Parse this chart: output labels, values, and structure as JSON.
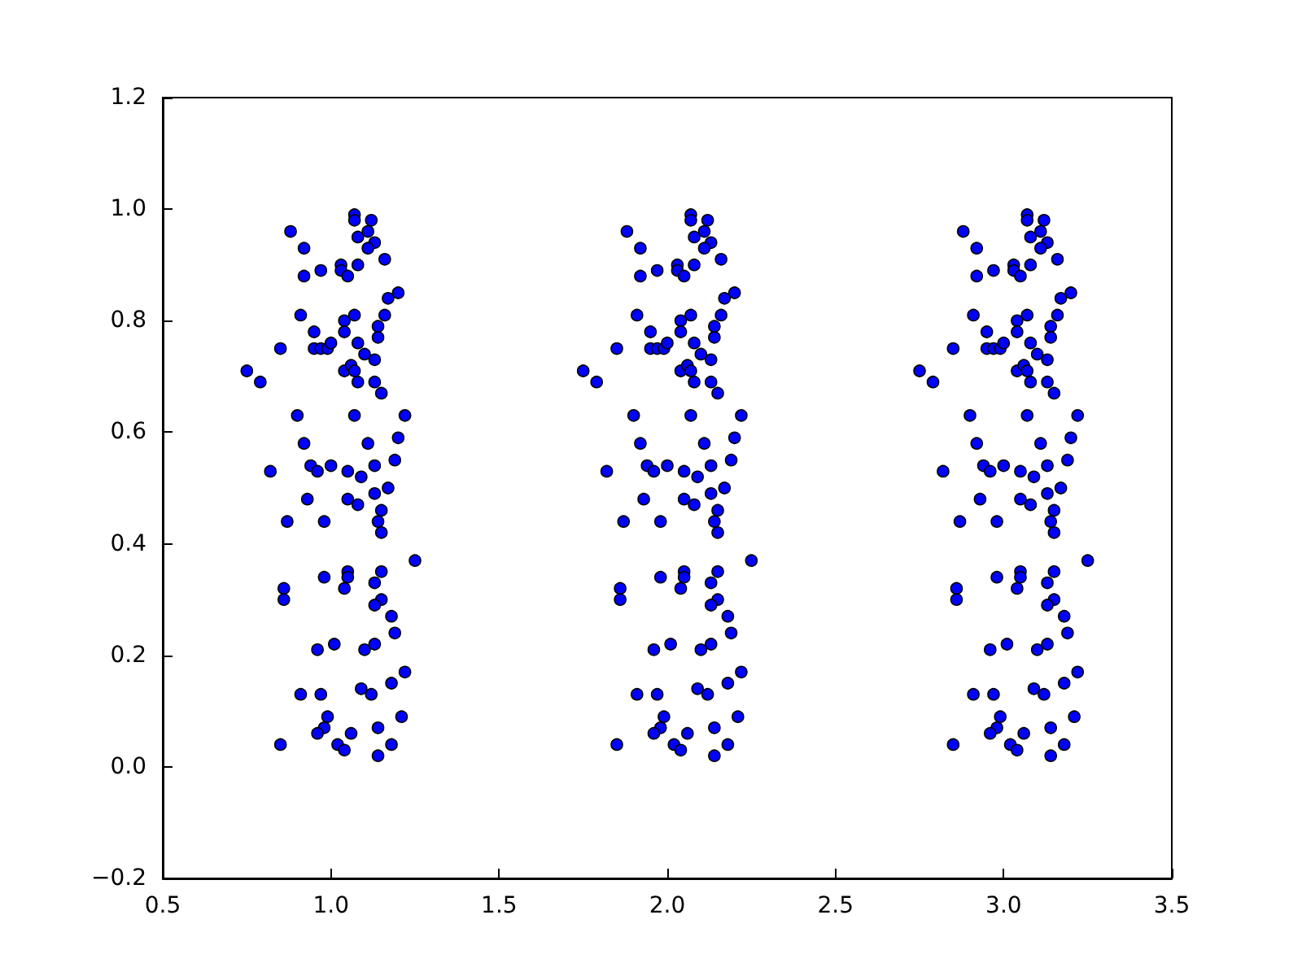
{
  "chart_data": {
    "type": "scatter",
    "marker": "circle",
    "grid": false,
    "xlim": [
      0.5,
      3.5
    ],
    "xticks": [
      {
        "value": 0.5,
        "label": "0.5"
      },
      {
        "value": 1,
        "label": "1.0"
      },
      {
        "value": 1.5,
        "label": "1.5"
      },
      {
        "value": 2,
        "label": "2.0"
      },
      {
        "value": 2.5,
        "label": "2.5"
      },
      {
        "value": 3,
        "label": "3.0"
      },
      {
        "value": 3.5,
        "label": "3.5"
      }
    ],
    "ylim": [
      -0.2,
      1.2
    ],
    "yticks": [
      {
        "value": -0.2,
        "label": "−0.2"
      },
      {
        "value": 0,
        "label": "0.0"
      },
      {
        "value": 0.2,
        "label": "0.2"
      },
      {
        "value": 0.4,
        "label": "0.4"
      },
      {
        "value": 0.6,
        "label": "0.6"
      },
      {
        "value": 0.8,
        "label": "0.8"
      },
      {
        "value": 1,
        "label": "1.0"
      },
      {
        "value": 1.2,
        "label": "1.2"
      }
    ],
    "series": [
      {
        "color": "#0000ff",
        "x": [
          1.07,
          1.07,
          1.12,
          0.88,
          1.11,
          1.08,
          1.13,
          1.11,
          0.92,
          1.16,
          1.03,
          1.08,
          0.97,
          1.03,
          1.05,
          0.92,
          1.2,
          1.17,
          1.16,
          0.91,
          1.07,
          1.04,
          1.14,
          1.04,
          0.95,
          1.14,
          0.85,
          0.95,
          0.97,
          0.99,
          1.0,
          1.08,
          1.1,
          1.13,
          0.75,
          0.79,
          1.04,
          1.06,
          1.07,
          1.08,
          1.13,
          1.15,
          0.9,
          1.07,
          1.22,
          1.2,
          0.92,
          1.11,
          1.19,
          0.82,
          0.94,
          0.96,
          1.0,
          1.05,
          1.09,
          1.13,
          1.17,
          0.93,
          1.05,
          1.08,
          1.13,
          1.15,
          0.87,
          0.98,
          1.14,
          1.15,
          1.25,
          0.98,
          1.05,
          1.05,
          1.15,
          0.86,
          0.86,
          1.04,
          1.13,
          1.15,
          1.13,
          1.18,
          1.19,
          0.96,
          1.01,
          1.1,
          1.13,
          1.22,
          1.18,
          0.91,
          0.97,
          1.09,
          1.12,
          0.99,
          0.98,
          0.96,
          1.06,
          1.14,
          1.21,
          0.85,
          1.02,
          1.04,
          1.18,
          1.14
        ],
        "values": [
          0.99,
          0.98,
          0.98,
          0.96,
          0.96,
          0.95,
          0.94,
          0.93,
          0.93,
          0.91,
          0.9,
          0.9,
          0.89,
          0.89,
          0.88,
          0.88,
          0.85,
          0.84,
          0.81,
          0.81,
          0.81,
          0.8,
          0.79,
          0.78,
          0.78,
          0.77,
          0.75,
          0.75,
          0.75,
          0.75,
          0.76,
          0.76,
          0.74,
          0.73,
          0.71,
          0.69,
          0.71,
          0.72,
          0.71,
          0.69,
          0.69,
          0.67,
          0.63,
          0.63,
          0.63,
          0.59,
          0.58,
          0.58,
          0.55,
          0.53,
          0.54,
          0.53,
          0.54,
          0.53,
          0.52,
          0.54,
          0.5,
          0.48,
          0.48,
          0.47,
          0.49,
          0.46,
          0.44,
          0.44,
          0.44,
          0.42,
          0.37,
          0.34,
          0.35,
          0.34,
          0.35,
          0.32,
          0.3,
          0.32,
          0.33,
          0.3,
          0.29,
          0.27,
          0.24,
          0.21,
          0.22,
          0.21,
          0.22,
          0.17,
          0.15,
          0.13,
          0.13,
          0.14,
          0.13,
          0.09,
          0.07,
          0.06,
          0.06,
          0.07,
          0.09,
          0.04,
          0.04,
          0.03,
          0.04,
          0.02
        ]
      },
      {
        "color": "#0000ff",
        "x": [
          2.07,
          2.07,
          2.12,
          1.88,
          2.11,
          2.08,
          2.13,
          2.11,
          1.92,
          2.16,
          2.03,
          2.08,
          1.97,
          2.03,
          2.05,
          1.92,
          2.2,
          2.17,
          2.16,
          1.91,
          2.07,
          2.04,
          2.14,
          2.04,
          1.95,
          2.14,
          1.85,
          1.95,
          1.97,
          1.99,
          2.0,
          2.08,
          2.1,
          2.13,
          1.75,
          1.79,
          2.04,
          2.06,
          2.07,
          2.08,
          2.13,
          2.15,
          1.9,
          2.07,
          2.22,
          2.2,
          1.92,
          2.11,
          2.19,
          1.82,
          1.94,
          1.96,
          2.0,
          2.05,
          2.09,
          2.13,
          2.17,
          1.93,
          2.05,
          2.08,
          2.13,
          2.15,
          1.87,
          1.98,
          2.14,
          2.15,
          2.25,
          1.98,
          2.05,
          2.05,
          2.15,
          1.86,
          1.86,
          2.04,
          2.13,
          2.15,
          2.13,
          2.18,
          2.19,
          1.96,
          2.01,
          2.1,
          2.13,
          2.22,
          2.18,
          1.91,
          1.97,
          2.09,
          2.12,
          1.99,
          1.98,
          1.96,
          2.06,
          2.14,
          2.21,
          1.85,
          2.02,
          2.04,
          2.18,
          2.14
        ],
        "values": [
          0.99,
          0.98,
          0.98,
          0.96,
          0.96,
          0.95,
          0.94,
          0.93,
          0.93,
          0.91,
          0.9,
          0.9,
          0.89,
          0.89,
          0.88,
          0.88,
          0.85,
          0.84,
          0.81,
          0.81,
          0.81,
          0.8,
          0.79,
          0.78,
          0.78,
          0.77,
          0.75,
          0.75,
          0.75,
          0.75,
          0.76,
          0.76,
          0.74,
          0.73,
          0.71,
          0.69,
          0.71,
          0.72,
          0.71,
          0.69,
          0.69,
          0.67,
          0.63,
          0.63,
          0.63,
          0.59,
          0.58,
          0.58,
          0.55,
          0.53,
          0.54,
          0.53,
          0.54,
          0.53,
          0.52,
          0.54,
          0.5,
          0.48,
          0.48,
          0.47,
          0.49,
          0.46,
          0.44,
          0.44,
          0.44,
          0.42,
          0.37,
          0.34,
          0.35,
          0.34,
          0.35,
          0.32,
          0.3,
          0.32,
          0.33,
          0.3,
          0.29,
          0.27,
          0.24,
          0.21,
          0.22,
          0.21,
          0.22,
          0.17,
          0.15,
          0.13,
          0.13,
          0.14,
          0.13,
          0.09,
          0.07,
          0.06,
          0.06,
          0.07,
          0.09,
          0.04,
          0.04,
          0.03,
          0.04,
          0.02
        ]
      },
      {
        "color": "#0000ff",
        "x": [
          3.07,
          3.07,
          3.12,
          2.88,
          3.11,
          3.08,
          3.13,
          3.11,
          2.92,
          3.16,
          3.03,
          3.08,
          2.97,
          3.03,
          3.05,
          2.92,
          3.2,
          3.17,
          3.16,
          2.91,
          3.07,
          3.04,
          3.14,
          3.04,
          2.95,
          3.14,
          2.85,
          2.95,
          2.97,
          2.99,
          3.0,
          3.08,
          3.1,
          3.13,
          2.75,
          2.79,
          3.04,
          3.06,
          3.07,
          3.08,
          3.13,
          3.15,
          2.9,
          3.07,
          3.22,
          3.2,
          2.92,
          3.11,
          3.19,
          2.82,
          2.94,
          2.96,
          3.0,
          3.05,
          3.09,
          3.13,
          3.17,
          2.93,
          3.05,
          3.08,
          3.13,
          3.15,
          2.87,
          2.98,
          3.14,
          3.15,
          3.25,
          2.98,
          3.05,
          3.05,
          3.15,
          2.86,
          2.86,
          3.04,
          3.13,
          3.15,
          3.13,
          3.18,
          3.19,
          2.96,
          3.01,
          3.1,
          3.13,
          3.22,
          3.18,
          2.91,
          2.97,
          3.09,
          3.12,
          2.99,
          2.98,
          2.96,
          3.06,
          3.14,
          3.21,
          2.85,
          3.02,
          3.04,
          3.18,
          3.14
        ],
        "values": [
          0.99,
          0.98,
          0.98,
          0.96,
          0.96,
          0.95,
          0.94,
          0.93,
          0.93,
          0.91,
          0.9,
          0.9,
          0.89,
          0.89,
          0.88,
          0.88,
          0.85,
          0.84,
          0.81,
          0.81,
          0.81,
          0.8,
          0.79,
          0.78,
          0.78,
          0.77,
          0.75,
          0.75,
          0.75,
          0.75,
          0.76,
          0.76,
          0.74,
          0.73,
          0.71,
          0.69,
          0.71,
          0.72,
          0.71,
          0.69,
          0.69,
          0.67,
          0.63,
          0.63,
          0.63,
          0.59,
          0.58,
          0.58,
          0.55,
          0.53,
          0.54,
          0.53,
          0.54,
          0.53,
          0.52,
          0.54,
          0.5,
          0.48,
          0.48,
          0.47,
          0.49,
          0.46,
          0.44,
          0.44,
          0.44,
          0.42,
          0.37,
          0.34,
          0.35,
          0.34,
          0.35,
          0.32,
          0.3,
          0.32,
          0.33,
          0.3,
          0.29,
          0.27,
          0.24,
          0.21,
          0.22,
          0.21,
          0.22,
          0.17,
          0.15,
          0.13,
          0.13,
          0.14,
          0.13,
          0.09,
          0.07,
          0.06,
          0.06,
          0.07,
          0.09,
          0.04,
          0.04,
          0.03,
          0.04,
          0.02
        ]
      }
    ]
  }
}
